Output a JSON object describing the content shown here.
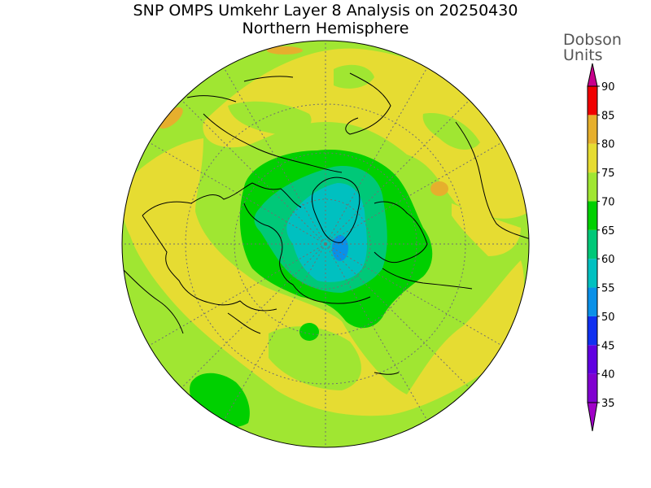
{
  "title": "SNP OMPS Umkehr Layer 8 Analysis on 20250430",
  "subtitle": "Northern Hemisphere",
  "colorbar": {
    "unit_line1": "Dobson",
    "unit_line2": "Units",
    "levels": [
      {
        "label": "35",
        "color": "#8000d0"
      },
      {
        "label": "40",
        "color": "#6000e0"
      },
      {
        "label": "45",
        "color": "#1030f0"
      },
      {
        "label": "50",
        "color": "#0a90e8"
      },
      {
        "label": "55",
        "color": "#00c0c0"
      },
      {
        "label": "60",
        "color": "#00c878"
      },
      {
        "label": "65",
        "color": "#00d000"
      },
      {
        "label": "70",
        "color": "#a0e632"
      },
      {
        "label": "75",
        "color": "#e6dc32"
      },
      {
        "label": "80",
        "color": "#e6af2d"
      },
      {
        "label": "85",
        "color": "#f07828"
      },
      {
        "label": "90",
        "color": "#f00000"
      }
    ],
    "under_color": "#a000c8",
    "over_color": "#c8008c"
  },
  "map": {
    "projection": "north-polar-stereographic",
    "background_color": "#a0e632",
    "contour_colors": {
      "level_70_75": "#e6dc32",
      "level_75_80": "#e6af2d",
      "level_60_65": "#00d000",
      "level_55_60": "#00c878",
      "level_50_55": "#00c0c0",
      "level_45_50": "#0a90e8",
      "coastline": "#000000",
      "graticule": "#707070"
    }
  }
}
